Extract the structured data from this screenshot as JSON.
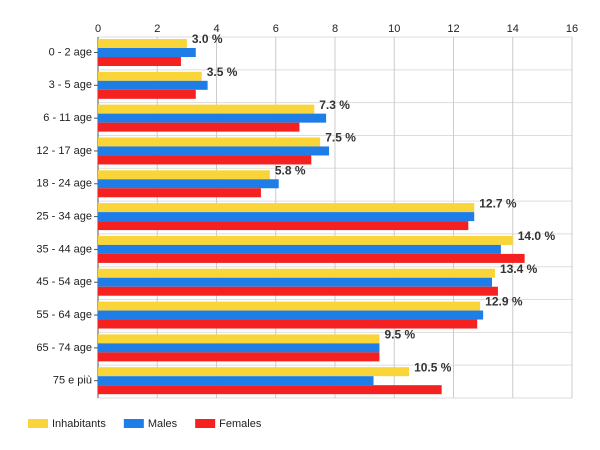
{
  "chart_data": {
    "type": "hbar",
    "categories": [
      "0 - 2 age",
      "3 - 5 age",
      "6 - 11 age",
      "12 - 17 age",
      "18 - 24 age",
      "25 - 34 age",
      "35 - 44 age",
      "45 - 54 age",
      "55 - 64 age",
      "65 - 74 age",
      "75 e più"
    ],
    "series": [
      {
        "name": "Inhabitants",
        "color": "#f9d53a",
        "values": [
          3.0,
          3.5,
          7.3,
          7.5,
          5.8,
          12.7,
          14.0,
          13.4,
          12.9,
          9.5,
          10.5
        ],
        "value_labels": [
          "3.0 %",
          "3.5 %",
          "7.3 %",
          "7.5 %",
          "5.8 %",
          "12.7 %",
          "14.0 %",
          "13.4 %",
          "12.9 %",
          "9.5 %",
          "10.5 %"
        ]
      },
      {
        "name": "Males",
        "color": "#1f7de8",
        "values": [
          3.3,
          3.7,
          7.7,
          7.8,
          6.1,
          12.7,
          13.6,
          13.3,
          13.0,
          9.5,
          9.3
        ]
      },
      {
        "name": "Females",
        "color": "#f52020",
        "values": [
          2.8,
          3.3,
          6.8,
          7.2,
          5.5,
          12.5,
          14.4,
          13.5,
          12.8,
          9.5,
          11.6
        ]
      }
    ],
    "xlim": [
      0,
      16
    ],
    "xticks": [
      0,
      2,
      4,
      6,
      8,
      10,
      12,
      14,
      16
    ],
    "grid": true,
    "legend": "bottom"
  }
}
